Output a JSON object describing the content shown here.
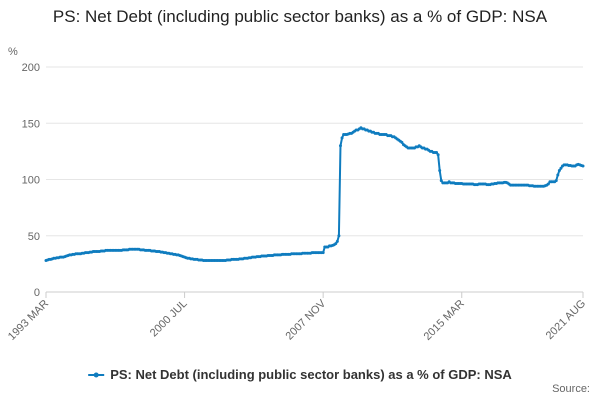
{
  "chart_data": {
    "type": "line",
    "title": "PS: Net Debt (including public sector banks) as a % of GDP: NSA",
    "y_label": "%",
    "source": "Source:",
    "categories": [
      "1993 MAR",
      null,
      null,
      null,
      null,
      null,
      null,
      null,
      null,
      null,
      null,
      null,
      null,
      null,
      null,
      null,
      null,
      null,
      null,
      null,
      null,
      null,
      null,
      null,
      null,
      null,
      null,
      null,
      null,
      null,
      null,
      null,
      null,
      null,
      null,
      null,
      null,
      null,
      null,
      null,
      null,
      null,
      null,
      null,
      null,
      null,
      null,
      null,
      null,
      null,
      null,
      null,
      null,
      null,
      null,
      null,
      null,
      null,
      null,
      null,
      null,
      null,
      null,
      null,
      null,
      null,
      null,
      null,
      null,
      null,
      null,
      null,
      null,
      null,
      null,
      null,
      null,
      null,
      null,
      null,
      null,
      null,
      null,
      null,
      null,
      null,
      null,
      null,
      "2000 JUL",
      null,
      null,
      null,
      null,
      null,
      null,
      null,
      null,
      null,
      null,
      null,
      null,
      null,
      null,
      null,
      null,
      null,
      null,
      null,
      null,
      null,
      null,
      null,
      null,
      null,
      null,
      null,
      null,
      null,
      null,
      null,
      null,
      null,
      null,
      null,
      null,
      null,
      null,
      null,
      null,
      null,
      null,
      null,
      null,
      null,
      null,
      null,
      null,
      null,
      null,
      null,
      null,
      null,
      null,
      null,
      null,
      null,
      null,
      null,
      null,
      null,
      null,
      null,
      null,
      null,
      null,
      null,
      null,
      null,
      null,
      null,
      null,
      null,
      null,
      null,
      null,
      null,
      null,
      null,
      null,
      null,
      null,
      null,
      null,
      null,
      null,
      null,
      "2007 NOV",
      null,
      null,
      null,
      null,
      null,
      null,
      null,
      null,
      null,
      null,
      null,
      null,
      null,
      null,
      null,
      null,
      null,
      null,
      null,
      null,
      null,
      null,
      null,
      null,
      null,
      null,
      null,
      null,
      null,
      null,
      null,
      null,
      null,
      null,
      null,
      null,
      null,
      null,
      null,
      null,
      null,
      null,
      null,
      null,
      null,
      null,
      null,
      null,
      null,
      null,
      null,
      null,
      null,
      null,
      null,
      null,
      null,
      null,
      null,
      null,
      null,
      null,
      null,
      null,
      null,
      null,
      null,
      null,
      null,
      null,
      null,
      null,
      null,
      null,
      null,
      null,
      null,
      null,
      null,
      null,
      null,
      null,
      null,
      null,
      null,
      null,
      null,
      "2015 MAR",
      null,
      null,
      null,
      null,
      null,
      null,
      null,
      null,
      null,
      null,
      null,
      null,
      null,
      null,
      null,
      null,
      null,
      null,
      null,
      null,
      null,
      null,
      null,
      null,
      null,
      null,
      null,
      null,
      null,
      null,
      null,
      null,
      null,
      null,
      null,
      null,
      null,
      null,
      null,
      null,
      null,
      null,
      null,
      null,
      null,
      null,
      null,
      null,
      null,
      null,
      null,
      null,
      null,
      null,
      null,
      null,
      null,
      null,
      null,
      null,
      null,
      null,
      null,
      null,
      null,
      null,
      null,
      null,
      null,
      null,
      null,
      null,
      null,
      null,
      null,
      null,
      "2021 AUG"
    ],
    "series": [
      {
        "name": "PS: Net Debt (including public sector banks) as a % of GDP: NSA",
        "color": "#0f7cbf",
        "values": [
          28,
          28.5,
          29,
          29,
          29.5,
          30,
          30,
          30.5,
          30.5,
          31,
          31,
          31,
          31.5,
          32,
          32.5,
          33,
          33,
          33.5,
          33.5,
          34,
          34,
          34,
          34,
          34.5,
          34.5,
          35,
          35,
          35,
          35.5,
          35.5,
          36,
          36,
          36,
          36,
          36,
          36.5,
          36.5,
          36.5,
          37,
          37,
          37,
          37,
          37,
          37,
          37,
          37,
          37,
          37,
          37,
          37.5,
          37.5,
          37.5,
          37.5,
          38,
          38,
          38,
          38,
          38,
          38,
          38,
          37.5,
          37.5,
          37.5,
          37,
          37,
          37,
          37,
          36.5,
          36.5,
          36.5,
          36,
          36,
          36,
          35.5,
          35.5,
          35,
          35,
          34.5,
          34.5,
          34,
          34,
          33.5,
          33.5,
          33,
          33,
          32.5,
          32,
          31.5,
          31,
          30.5,
          30,
          30,
          29.5,
          29.5,
          29,
          29,
          29,
          28.5,
          28.5,
          28.5,
          28,
          28,
          28,
          28,
          28,
          28,
          28,
          28,
          28,
          28,
          28,
          28,
          28,
          28,
          28,
          28.5,
          28.5,
          28.5,
          29,
          29,
          29,
          29,
          29,
          29.5,
          29.5,
          29.5,
          30,
          30,
          30,
          30.5,
          30.5,
          31,
          31,
          31,
          31.5,
          31.5,
          31.5,
          32,
          32,
          32,
          32,
          32.5,
          32.5,
          32.5,
          32.5,
          33,
          33,
          33,
          33,
          33,
          33.5,
          33.5,
          33.5,
          33.5,
          33.5,
          33.5,
          34,
          34,
          34,
          34,
          34,
          34,
          34,
          34.5,
          34.5,
          34.5,
          34.5,
          34.5,
          34.5,
          35,
          35,
          35,
          35,
          35,
          35,
          35,
          35,
          40,
          40,
          40,
          41,
          41,
          41.5,
          42,
          43,
          45,
          50,
          130,
          137,
          140,
          140,
          140,
          140.5,
          141,
          141,
          142,
          143,
          144,
          144,
          145,
          146,
          145,
          145,
          144,
          144,
          143,
          143,
          142,
          142,
          141,
          141,
          141,
          140,
          140,
          140,
          140,
          140,
          139,
          139,
          139,
          138,
          138,
          137,
          136,
          135,
          134,
          133,
          131,
          130,
          129,
          128,
          128,
          128,
          128,
          128,
          129,
          129,
          130,
          129,
          128,
          128,
          127,
          127,
          126,
          125,
          125,
          124,
          124,
          124,
          122,
          108,
          99,
          97,
          97,
          97,
          97,
          98,
          97,
          97,
          97,
          96.5,
          96.5,
          96.5,
          96.5,
          96.5,
          96,
          96,
          96,
          96,
          96,
          96,
          96,
          95.5,
          95.5,
          95.5,
          96,
          96,
          96,
          96,
          96,
          95.5,
          95.5,
          95.5,
          96,
          96,
          96.5,
          96.5,
          97,
          97,
          97,
          97,
          97.5,
          97.5,
          97,
          96,
          95,
          95,
          95,
          95,
          95,
          95,
          95,
          95,
          95,
          95,
          95,
          95,
          94.5,
          94.5,
          94.5,
          94,
          94,
          94,
          94,
          94,
          94,
          94,
          94.5,
          95,
          96,
          98,
          98,
          98,
          98,
          99,
          104,
          108,
          110,
          112,
          113,
          113,
          113,
          112.5,
          112.5,
          112,
          112,
          112,
          113,
          113.5,
          113,
          112.5,
          112
        ]
      }
    ],
    "ylim": [
      0,
      200
    ],
    "yticks": [
      0,
      50,
      100,
      150,
      200
    ],
    "grid": true,
    "legend": "bottom"
  }
}
